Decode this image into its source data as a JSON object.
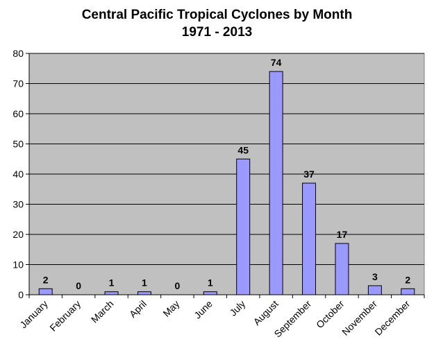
{
  "chart_data": {
    "type": "bar",
    "title": "Central Pacific Tropical Cyclones by Month",
    "subtitle": "1971 - 2013",
    "categories": [
      "January",
      "February",
      "March",
      "April",
      "May",
      "June",
      "July",
      "August",
      "September",
      "October",
      "November",
      "December"
    ],
    "values": [
      2,
      0,
      1,
      1,
      0,
      1,
      45,
      74,
      37,
      17,
      3,
      2
    ],
    "ylim": [
      0,
      80
    ],
    "yticks": [
      0,
      10,
      20,
      30,
      40,
      50,
      60,
      70,
      80
    ],
    "grid": true,
    "legend": "none",
    "colors": {
      "bar": "#9999ff",
      "plot_bg": "#c0c0c0",
      "grid": "#000000"
    }
  }
}
